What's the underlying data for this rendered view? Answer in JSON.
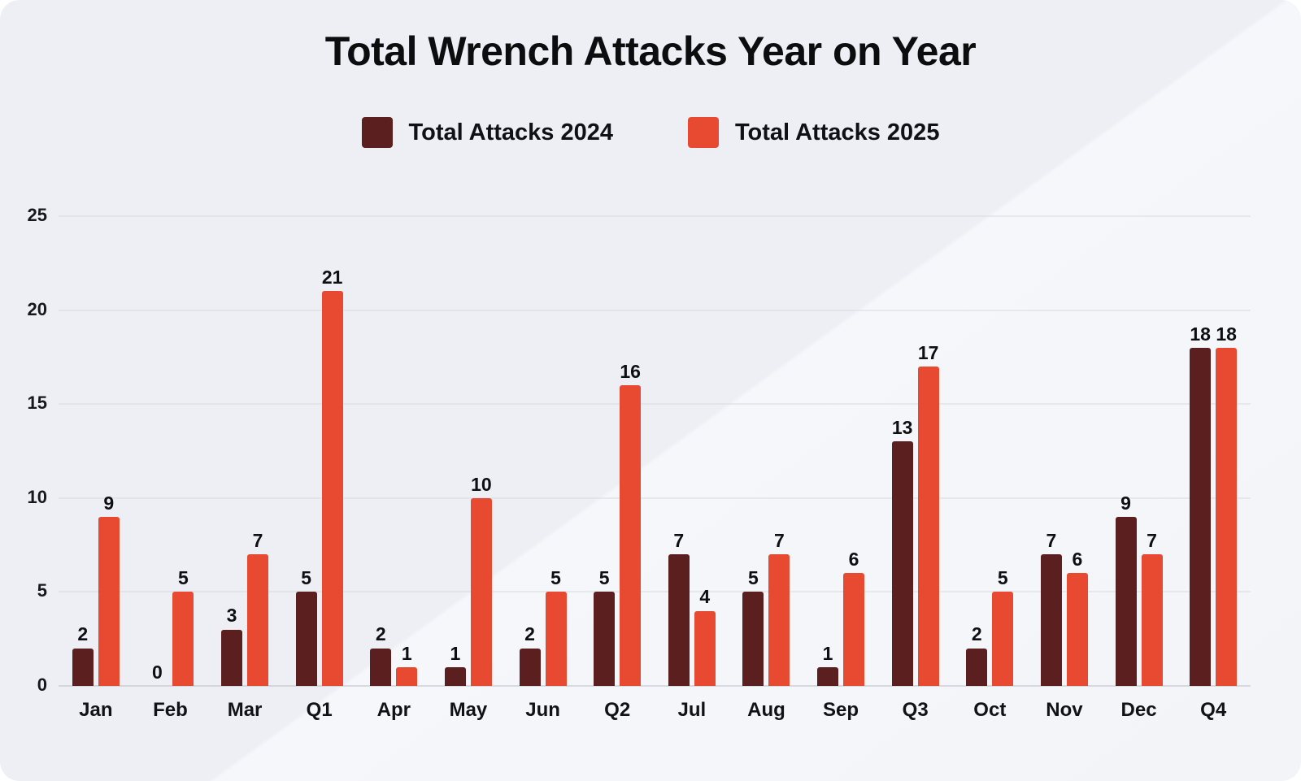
{
  "title": "Total Wrench Attacks Year on Year",
  "legend": {
    "items": [
      {
        "label": "Total Attacks 2024",
        "color": "#5b1f1f"
      },
      {
        "label": "Total Attacks 2025",
        "color": "#e74a31"
      }
    ]
  },
  "chart_data": {
    "type": "bar",
    "title": "Total Wrench Attacks Year on Year",
    "categories": [
      "Jan",
      "Feb",
      "Mar",
      "Q1",
      "Apr",
      "May",
      "Jun",
      "Q2",
      "Jul",
      "Aug",
      "Sep",
      "Q3",
      "Oct",
      "Nov",
      "Dec",
      "Q4"
    ],
    "series": [
      {
        "name": "Total Attacks 2024",
        "color": "#5b1f1f",
        "values": [
          2,
          0,
          3,
          5,
          2,
          1,
          2,
          5,
          7,
          5,
          1,
          13,
          2,
          7,
          9,
          18
        ]
      },
      {
        "name": "Total Attacks 2025",
        "color": "#e74a31",
        "values": [
          9,
          5,
          7,
          21,
          1,
          10,
          5,
          16,
          4,
          7,
          6,
          17,
          5,
          6,
          7,
          18
        ]
      }
    ],
    "ylim": [
      0,
      25
    ],
    "yticks": [
      0,
      5,
      10,
      15,
      20,
      25
    ],
    "grid": true,
    "legend_position": "top",
    "value_labels": true
  }
}
